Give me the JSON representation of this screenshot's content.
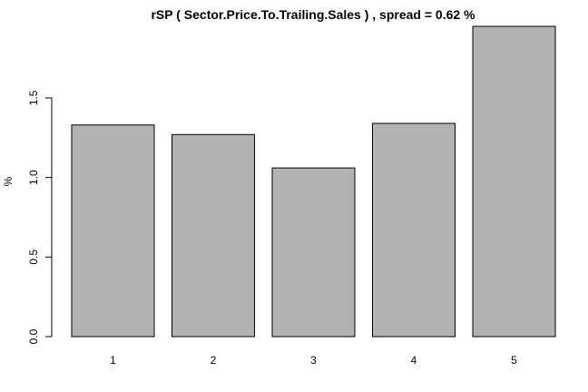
{
  "chart_data": {
    "type": "bar",
    "title": "rSP ( Sector.Price.To.Trailing.Sales ) , spread = 0.62 %",
    "xlabel": "",
    "ylabel": "%",
    "categories": [
      "1",
      "2",
      "3",
      "4",
      "5"
    ],
    "values": [
      1.33,
      1.27,
      1.06,
      1.34,
      1.95
    ],
    "ylim": [
      0,
      1.95
    ],
    "yticks": [
      0.0,
      0.5,
      1.0,
      1.5
    ],
    "ytick_labels": [
      "0.0",
      "0.5",
      "1.0",
      "1.5"
    ],
    "bar_color": "#b3b3b3",
    "grid": false,
    "legend": "none"
  }
}
